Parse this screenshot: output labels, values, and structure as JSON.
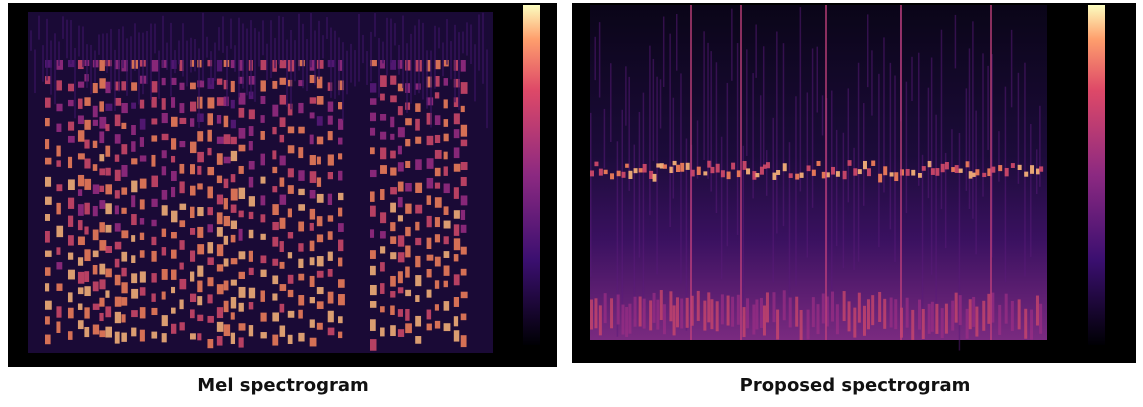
{
  "figure": {
    "captions": [
      "Mel spectrogram",
      "Proposed spectrogram"
    ]
  }
}
